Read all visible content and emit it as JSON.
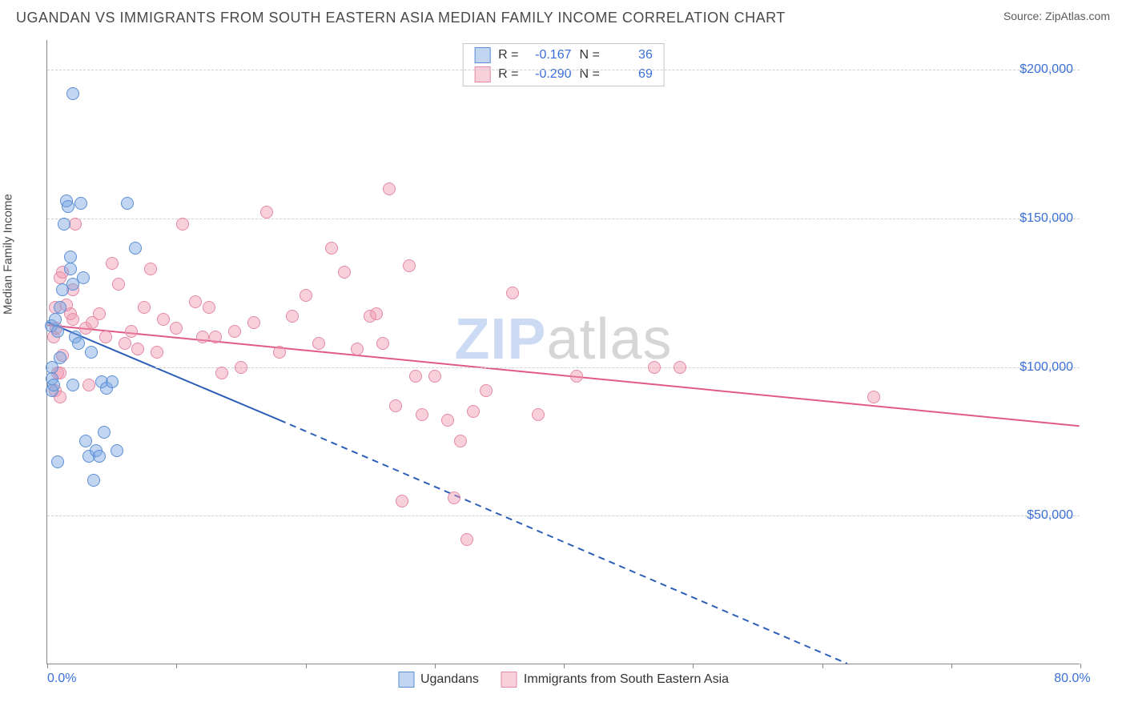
{
  "header": {
    "title": "UGANDAN VS IMMIGRANTS FROM SOUTH EASTERN ASIA MEDIAN FAMILY INCOME CORRELATION CHART",
    "source_label": "Source: ",
    "source_value": "ZipAtlas.com"
  },
  "chart": {
    "type": "scatter",
    "y_label": "Median Family Income",
    "background_color": "#ffffff",
    "grid_color": "#d0d0d0",
    "axis_color": "#888888",
    "label_color": "#4a4a4a",
    "tick_label_color": "#3a6fd8",
    "title_fontsize": 18,
    "label_fontsize": 15,
    "tick_fontsize": 16,
    "x_min": 0.0,
    "x_max": 80.0,
    "x_min_label": "0.0%",
    "x_max_label": "80.0%",
    "x_ticks": [
      0,
      10,
      20,
      30,
      40,
      50,
      60,
      70,
      80
    ],
    "y_min": 0,
    "y_max": 210000,
    "y_ticks": [
      50000,
      100000,
      150000,
      200000
    ],
    "y_tick_labels": [
      "$50,000",
      "$100,000",
      "$150,000",
      "$200,000"
    ],
    "marker_radius": 8,
    "marker_border_width": 1.5,
    "line_width": 2,
    "watermark": {
      "part1": "ZIP",
      "part2": "atlas"
    }
  },
  "series": {
    "a": {
      "name": "Ugandans",
      "R": "-0.167",
      "N": "36",
      "color_fill": "rgba(120,165,225,0.45)",
      "color_stroke": "#5b8fd6",
      "line_color": "#2d5fb8",
      "regression": {
        "x1": 0,
        "y1": 115000,
        "x2_solid": 18,
        "y2_solid": 82000,
        "x2": 62,
        "y2": 0
      },
      "points": [
        [
          0.3,
          114000
        ],
        [
          0.4,
          100000
        ],
        [
          0.4,
          92000
        ],
        [
          0.4,
          96000
        ],
        [
          0.5,
          94000
        ],
        [
          0.6,
          116000
        ],
        [
          0.8,
          68000
        ],
        [
          0.8,
          112000
        ],
        [
          1.0,
          120000
        ],
        [
          1.0,
          103000
        ],
        [
          1.2,
          126000
        ],
        [
          1.3,
          148000
        ],
        [
          1.5,
          156000
        ],
        [
          1.6,
          154000
        ],
        [
          1.8,
          137000
        ],
        [
          1.8,
          133000
        ],
        [
          2.0,
          192000
        ],
        [
          2.0,
          128000
        ],
        [
          2.0,
          94000
        ],
        [
          2.2,
          110000
        ],
        [
          2.4,
          108000
        ],
        [
          2.6,
          155000
        ],
        [
          2.8,
          130000
        ],
        [
          3.0,
          75000
        ],
        [
          3.2,
          70000
        ],
        [
          3.4,
          105000
        ],
        [
          3.6,
          62000
        ],
        [
          3.8,
          72000
        ],
        [
          4.0,
          70000
        ],
        [
          4.2,
          95000
        ],
        [
          4.4,
          78000
        ],
        [
          4.6,
          93000
        ],
        [
          6.8,
          140000
        ],
        [
          6.2,
          155000
        ],
        [
          5.0,
          95000
        ],
        [
          5.4,
          72000
        ]
      ]
    },
    "b": {
      "name": "Immigrants from South Eastern Asia",
      "R": "-0.290",
      "N": "69",
      "color_fill": "rgba(240,150,175,0.45)",
      "color_stroke": "#e48aa4",
      "line_color": "#e05a88",
      "regression": {
        "x1": 0,
        "y1": 114000,
        "x2_solid": 80,
        "y2_solid": 80000,
        "x2": 80,
        "y2": 80000
      },
      "points": [
        [
          0.5,
          110000
        ],
        [
          0.6,
          92000
        ],
        [
          0.6,
          120000
        ],
        [
          0.7,
          113000
        ],
        [
          0.8,
          98000
        ],
        [
          1.0,
          98000
        ],
        [
          1.0,
          130000
        ],
        [
          1.0,
          90000
        ],
        [
          1.2,
          104000
        ],
        [
          1.2,
          132000
        ],
        [
          1.5,
          121000
        ],
        [
          1.8,
          118000
        ],
        [
          2.0,
          116000
        ],
        [
          2.0,
          126000
        ],
        [
          2.2,
          148000
        ],
        [
          3.0,
          113000
        ],
        [
          3.2,
          94000
        ],
        [
          3.5,
          115000
        ],
        [
          4.0,
          118000
        ],
        [
          4.5,
          110000
        ],
        [
          5.0,
          135000
        ],
        [
          5.5,
          128000
        ],
        [
          6.0,
          108000
        ],
        [
          6.5,
          112000
        ],
        [
          7.0,
          106000
        ],
        [
          7.5,
          120000
        ],
        [
          8.0,
          133000
        ],
        [
          8.5,
          105000
        ],
        [
          9.0,
          116000
        ],
        [
          10.0,
          113000
        ],
        [
          10.5,
          148000
        ],
        [
          11.5,
          122000
        ],
        [
          12.0,
          110000
        ],
        [
          12.5,
          120000
        ],
        [
          13.0,
          110000
        ],
        [
          13.5,
          98000
        ],
        [
          14.5,
          112000
        ],
        [
          15.0,
          100000
        ],
        [
          16.0,
          115000
        ],
        [
          17.0,
          152000
        ],
        [
          18.0,
          105000
        ],
        [
          19.0,
          117000
        ],
        [
          20.0,
          124000
        ],
        [
          21.0,
          108000
        ],
        [
          22.0,
          140000
        ],
        [
          23.0,
          132000
        ],
        [
          24.0,
          106000
        ],
        [
          25.0,
          117000
        ],
        [
          25.5,
          118000
        ],
        [
          26.0,
          108000
        ],
        [
          26.5,
          160000
        ],
        [
          27.0,
          87000
        ],
        [
          27.5,
          55000
        ],
        [
          28.0,
          134000
        ],
        [
          28.5,
          97000
        ],
        [
          29.0,
          84000
        ],
        [
          30.0,
          97000
        ],
        [
          31.0,
          82000
        ],
        [
          31.5,
          56000
        ],
        [
          32.0,
          75000
        ],
        [
          32.5,
          42000
        ],
        [
          34.0,
          92000
        ],
        [
          36.0,
          125000
        ],
        [
          38.0,
          84000
        ],
        [
          41.0,
          97000
        ],
        [
          47.0,
          100000
        ],
        [
          49.0,
          100000
        ],
        [
          64.0,
          90000
        ],
        [
          33.0,
          85000
        ]
      ]
    }
  },
  "r_legend": {
    "r_label": "R =",
    "n_label": "N ="
  }
}
